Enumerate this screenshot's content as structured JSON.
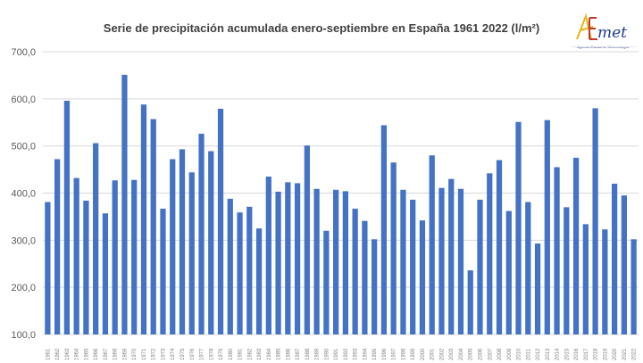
{
  "logo": {
    "text": "AEmet",
    "subtitle": "Agencia Estatal de Meteorología",
    "colors": [
      "#e7b416",
      "#c0392b",
      "#1f3a93"
    ]
  },
  "chart_data": {
    "type": "bar",
    "title": "Serie de precipitación acumulada enero-septiembre en España 1961 2022 (l/m²)",
    "xlabel": "",
    "ylabel": "",
    "ylim": [
      100,
      700
    ],
    "yticks": [
      100,
      200,
      300,
      400,
      500,
      600,
      700
    ],
    "ytick_labels": [
      "100,0",
      "200,0",
      "300,0",
      "400,0",
      "500,0",
      "600,0",
      "700,0"
    ],
    "grid": true,
    "bar_color": "#4472c4",
    "categories": [
      "1961",
      "1962",
      "1963",
      "1964",
      "1965",
      "1966",
      "1967",
      "1968",
      "1969",
      "1970",
      "1971",
      "1972",
      "1973",
      "1974",
      "1975",
      "1976",
      "1977",
      "1978",
      "1979",
      "1980",
      "1981",
      "1982",
      "1983",
      "1984",
      "1985",
      "1986",
      "1987",
      "1988",
      "1989",
      "1990",
      "1991",
      "1992",
      "1993",
      "1994",
      "1995",
      "1996",
      "1997",
      "1998",
      "1999",
      "2000",
      "2001",
      "2002",
      "2003",
      "2004",
      "2005",
      "2006",
      "2007",
      "2008",
      "2009",
      "2010",
      "2011",
      "2012",
      "2013",
      "2014",
      "2015",
      "2016",
      "2017",
      "2018",
      "2019",
      "2020",
      "2021",
      "2022"
    ],
    "values": [
      381,
      472,
      596,
      432,
      384,
      506,
      357,
      427,
      651,
      428,
      588,
      557,
      367,
      472,
      493,
      444,
      526,
      489,
      579,
      388,
      359,
      371,
      325,
      435,
      403,
      423,
      421,
      501,
      409,
      320,
      407,
      404,
      367,
      341,
      302,
      544,
      465,
      407,
      386,
      342,
      480,
      411,
      430,
      409,
      236,
      386,
      442,
      470,
      362,
      551,
      381,
      293,
      555,
      455,
      370,
      475,
      334,
      580,
      323,
      420,
      395,
      302
    ]
  }
}
